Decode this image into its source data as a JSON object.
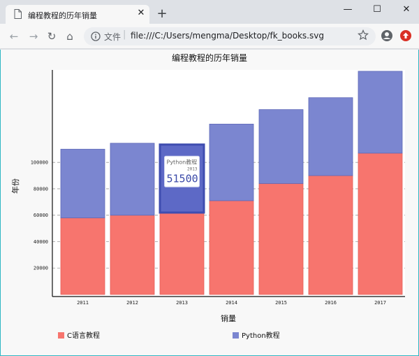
{
  "browser": {
    "tab_title": "编程教程的历年销量",
    "tab_close": "✕",
    "new_tab": "+",
    "scheme_label": "文件",
    "url": "file:///C:/Users/mengma/Desktop/fk_books.svg",
    "minimize": "—",
    "maximize": "☐",
    "close": "✕",
    "back": "←",
    "forward": "→",
    "reload": "↻",
    "home": "⌂",
    "icons": [
      "page-icon",
      "info-icon",
      "star-icon",
      "profile-icon",
      "update-icon"
    ],
    "accent_color": "#2fb7c4"
  },
  "chart_data": {
    "type": "bar",
    "stacked": true,
    "title": "编程教程的历年销量",
    "xlabel": "销量",
    "ylabel": "年份",
    "categories": [
      "2011",
      "2012",
      "2013",
      "2014",
      "2015",
      "2016",
      "2017"
    ],
    "series": [
      {
        "name": "C语言教程",
        "color": "#f7756e",
        "values": [
          58000,
          60000,
          62000,
          71000,
          84000,
          90000,
          107000
        ]
      },
      {
        "name": "Python教程",
        "color": "#7b86d0",
        "values": [
          52000,
          54500,
          51500,
          58000,
          56000,
          59000,
          62000
        ]
      }
    ],
    "yticks": [
      20000,
      40000,
      60000,
      80000,
      100000
    ],
    "ylim": [
      0,
      170000
    ],
    "grid": "horizontal dashed",
    "legend": "bottom",
    "tooltip": {
      "series": "Python教程",
      "category": "2013",
      "value": "51500"
    }
  }
}
